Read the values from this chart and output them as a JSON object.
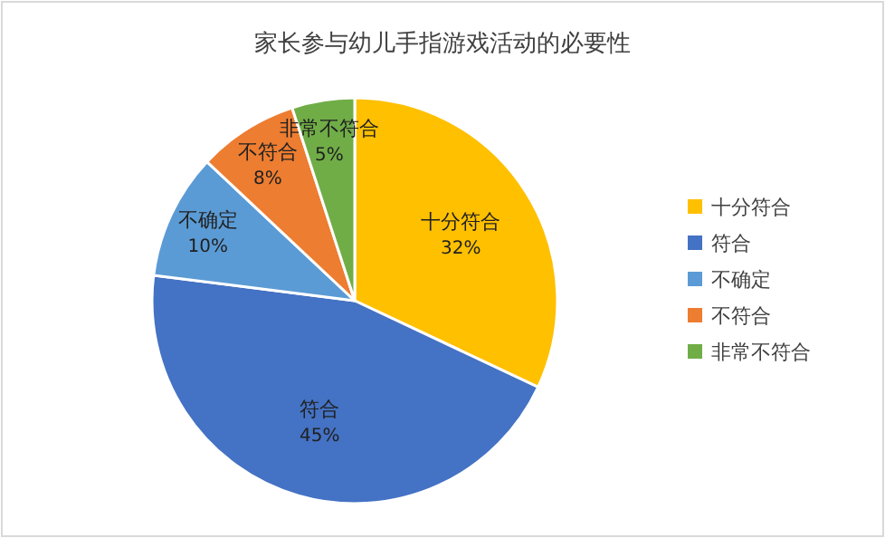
{
  "chart_data": {
    "type": "pie",
    "title": "家长参与幼儿手指游戏活动的必要性",
    "categories": [
      "十分符合",
      "符合",
      "不确定",
      "不符合",
      "非常不符合"
    ],
    "values": [
      32,
      45,
      10,
      8,
      5
    ],
    "colors": [
      "#ffc000",
      "#4472c4",
      "#5b9bd5",
      "#ed7d31",
      "#70ad47"
    ],
    "value_labels": [
      "32%",
      "45%",
      "10%",
      "8%",
      "5%"
    ],
    "legend": "right"
  }
}
